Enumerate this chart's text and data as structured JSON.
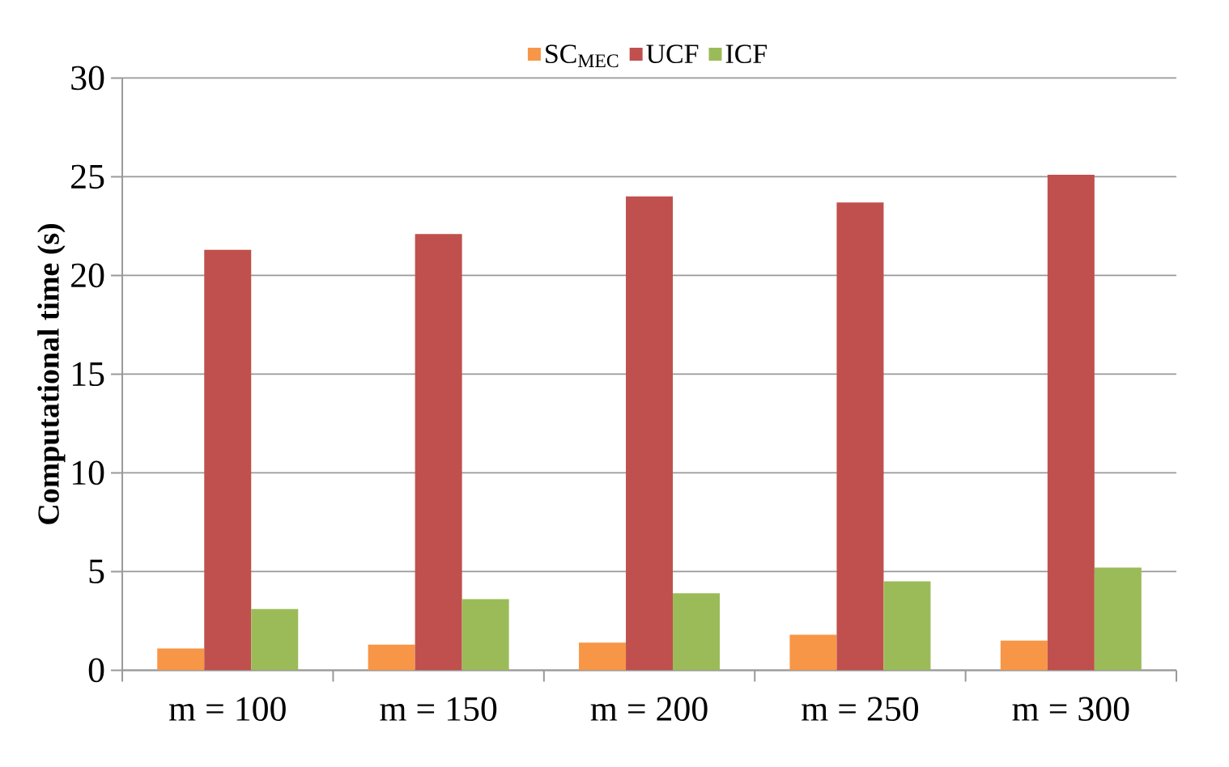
{
  "chart_data": {
    "type": "bar",
    "ylabel": "Computational time (s)",
    "categories": [
      "m = 100",
      "m = 150",
      "m = 200",
      "m = 250",
      "m = 300"
    ],
    "series": [
      {
        "name": "SC$_{MEC}$",
        "color": "#f79646",
        "values": [
          1.1,
          1.3,
          1.4,
          1.8,
          1.5
        ]
      },
      {
        "name": "UCF",
        "color": "#c0504d",
        "values": [
          21.3,
          22.1,
          24.0,
          23.7,
          25.1
        ]
      },
      {
        "name": "ICF",
        "color": "#9bbb59",
        "values": [
          3.1,
          3.6,
          3.9,
          4.5,
          5.2
        ]
      }
    ],
    "ylim": [
      0,
      30
    ],
    "yticks": [
      0,
      5,
      10,
      15,
      20,
      25,
      30
    ],
    "grid": "y",
    "legend": "top"
  }
}
